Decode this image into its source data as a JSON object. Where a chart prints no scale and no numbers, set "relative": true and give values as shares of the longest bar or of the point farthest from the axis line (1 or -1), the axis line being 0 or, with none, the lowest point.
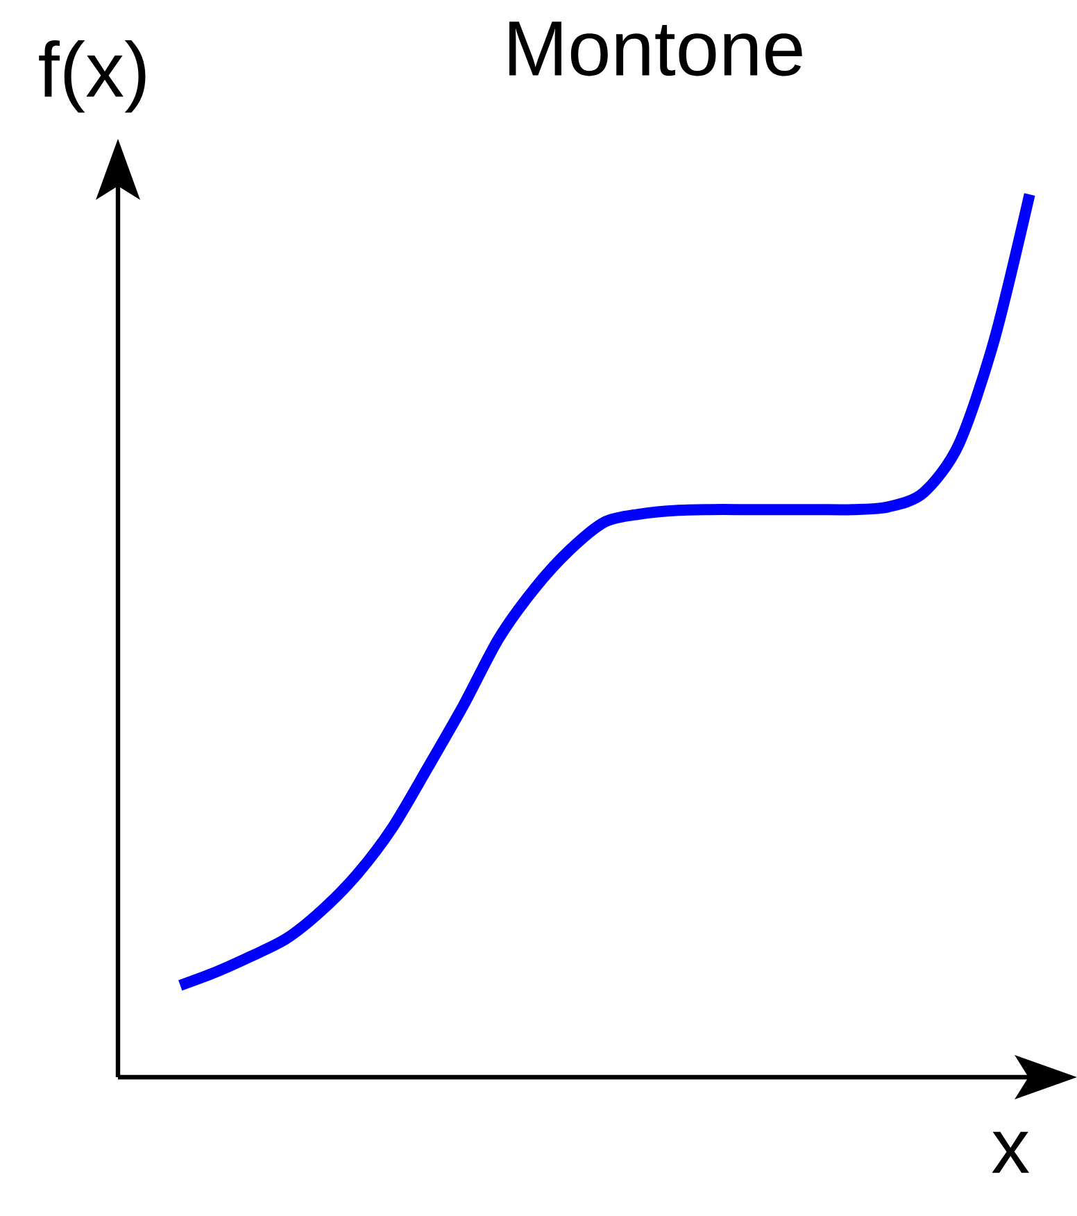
{
  "chart_data": {
    "type": "line",
    "title": "Montone",
    "xlabel": "x",
    "ylabel": "f(x)",
    "relative": true,
    "categories": [
      null,
      null,
      null,
      null,
      null,
      null,
      null,
      null,
      null,
      null,
      null,
      null,
      null,
      null,
      null,
      null,
      null,
      null,
      null,
      null,
      null,
      null,
      null,
      null,
      null
    ],
    "series": [
      {
        "color": "#0000ff",
        "values": [
          0.104,
          0.119,
          0.137,
          0.157,
          0.189,
          0.23,
          0.283,
          0.351,
          0.421,
          0.497,
          0.553,
          0.597,
          0.629,
          0.638,
          0.642,
          0.643,
          0.643,
          0.643,
          0.643,
          0.643,
          0.646,
          0.662,
          0.717,
          0.835,
          1
        ]
      }
    ]
  }
}
